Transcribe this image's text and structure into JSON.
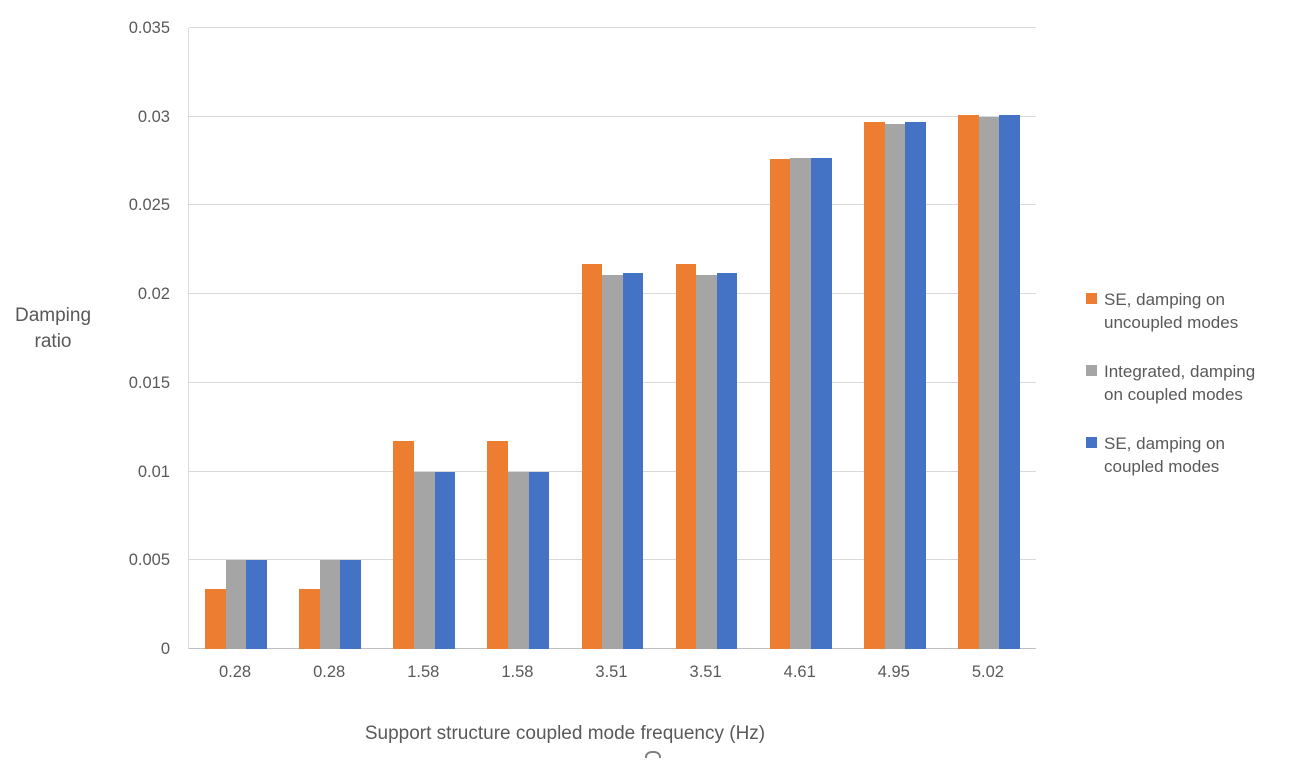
{
  "chart_data": {
    "type": "bar",
    "title": "",
    "xlabel": "Support structure coupled mode frequency (Hz)",
    "ylabel": "Damping ratio",
    "categories": [
      "0.28",
      "0.28",
      "1.58",
      "1.58",
      "3.51",
      "3.51",
      "4.61",
      "4.95",
      "5.02"
    ],
    "series": [
      {
        "name": "SE, damping on uncoupled modes",
        "color": "#ED7D31",
        "values": [
          0.0034,
          0.0034,
          0.0117,
          0.0117,
          0.0217,
          0.0217,
          0.0276,
          0.0297,
          0.0301
        ]
      },
      {
        "name": "Integrated, damping on coupled modes",
        "color": "#A5A5A5",
        "values": [
          0.005,
          0.005,
          0.01,
          0.01,
          0.0211,
          0.0211,
          0.0277,
          0.0296,
          0.03
        ]
      },
      {
        "name": "SE, damping on coupled modes",
        "color": "#4472C4",
        "values": [
          0.005,
          0.005,
          0.01,
          0.01,
          0.0212,
          0.0212,
          0.0277,
          0.0297,
          0.0301
        ]
      }
    ],
    "ylim": [
      0,
      0.035
    ],
    "ytick_labels": [
      "0",
      "0.005",
      "0.01",
      "0.015",
      "0.02",
      "0.025",
      "0.03",
      "0.035"
    ],
    "grid": true,
    "legend_position": "right",
    "colors": {
      "gridline": "#D9D9D9",
      "axis_line": "#BFBFBF",
      "text": "#595959"
    }
  }
}
